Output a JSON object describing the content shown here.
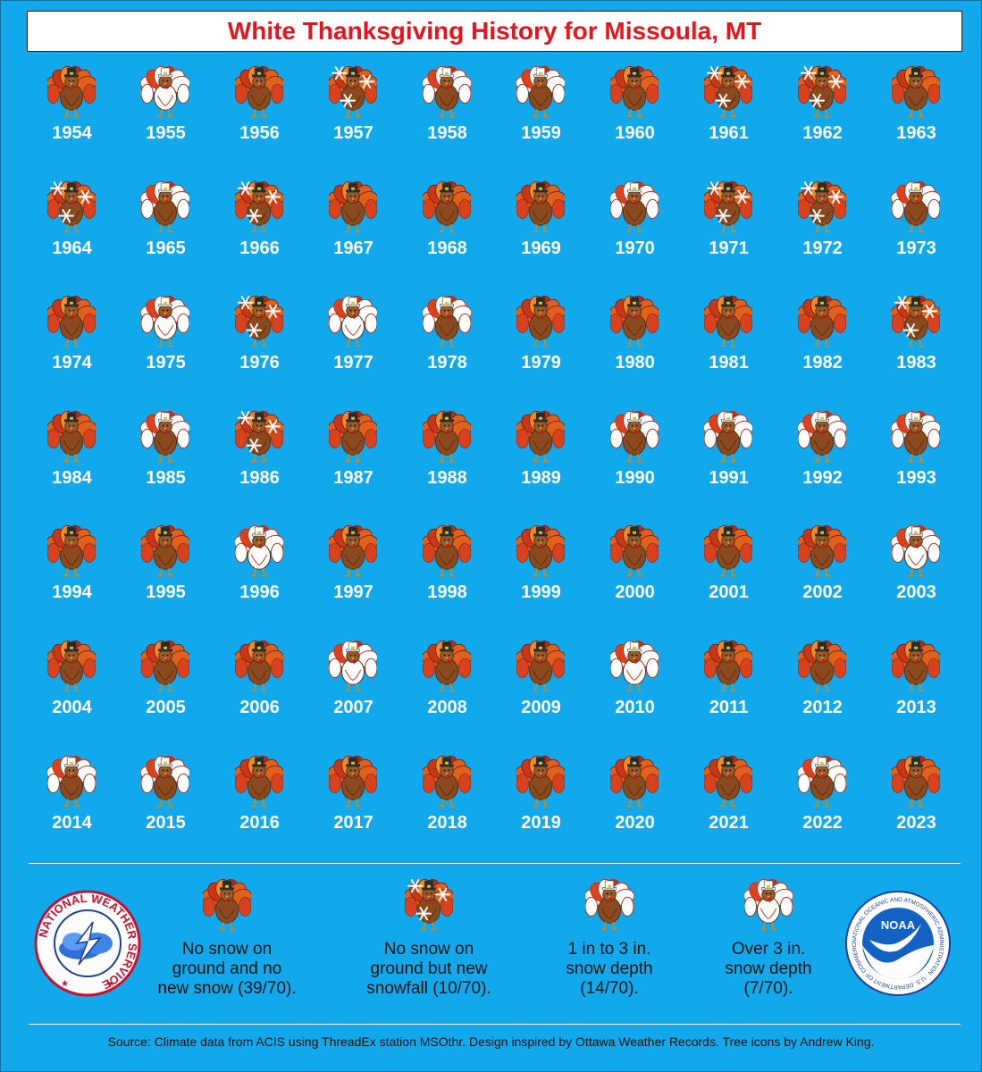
{
  "title": "White Thanksgiving History for Missoula, MT",
  "colors": {
    "background": "#12a9ec",
    "title_text": "#e8141b",
    "none": "#8a4a1e",
    "new_snow": "#8a4a1e",
    "snow_1_3": "#ffffff",
    "snow_over_3": "#ffffff"
  },
  "chart_data": {
    "type": "table",
    "categories": [
      "none",
      "new_snow",
      "snow_1_3",
      "snow_over_3"
    ],
    "years": [
      {
        "year": "1954",
        "category": "none"
      },
      {
        "year": "1955",
        "category": "snow_over_3"
      },
      {
        "year": "1956",
        "category": "none"
      },
      {
        "year": "1957",
        "category": "new_snow"
      },
      {
        "year": "1958",
        "category": "snow_1_3"
      },
      {
        "year": "1959",
        "category": "snow_1_3"
      },
      {
        "year": "1960",
        "category": "none"
      },
      {
        "year": "1961",
        "category": "new_snow"
      },
      {
        "year": "1962",
        "category": "new_snow"
      },
      {
        "year": "1963",
        "category": "none"
      },
      {
        "year": "1964",
        "category": "new_snow"
      },
      {
        "year": "1965",
        "category": "snow_1_3"
      },
      {
        "year": "1966",
        "category": "new_snow"
      },
      {
        "year": "1967",
        "category": "none"
      },
      {
        "year": "1968",
        "category": "none"
      },
      {
        "year": "1969",
        "category": "none"
      },
      {
        "year": "1970",
        "category": "snow_1_3"
      },
      {
        "year": "1971",
        "category": "new_snow"
      },
      {
        "year": "1972",
        "category": "new_snow"
      },
      {
        "year": "1973",
        "category": "snow_1_3"
      },
      {
        "year": "1974",
        "category": "none"
      },
      {
        "year": "1975",
        "category": "snow_over_3"
      },
      {
        "year": "1976",
        "category": "new_snow"
      },
      {
        "year": "1977",
        "category": "snow_over_3"
      },
      {
        "year": "1978",
        "category": "snow_1_3"
      },
      {
        "year": "1979",
        "category": "none"
      },
      {
        "year": "1980",
        "category": "none"
      },
      {
        "year": "1981",
        "category": "none"
      },
      {
        "year": "1982",
        "category": "none"
      },
      {
        "year": "1983",
        "category": "new_snow"
      },
      {
        "year": "1984",
        "category": "none"
      },
      {
        "year": "1985",
        "category": "snow_1_3"
      },
      {
        "year": "1986",
        "category": "new_snow"
      },
      {
        "year": "1987",
        "category": "none"
      },
      {
        "year": "1988",
        "category": "none"
      },
      {
        "year": "1989",
        "category": "none"
      },
      {
        "year": "1990",
        "category": "snow_1_3"
      },
      {
        "year": "1991",
        "category": "snow_1_3"
      },
      {
        "year": "1992",
        "category": "snow_1_3"
      },
      {
        "year": "1993",
        "category": "snow_1_3"
      },
      {
        "year": "1994",
        "category": "none"
      },
      {
        "year": "1995",
        "category": "none"
      },
      {
        "year": "1996",
        "category": "snow_over_3"
      },
      {
        "year": "1997",
        "category": "none"
      },
      {
        "year": "1998",
        "category": "none"
      },
      {
        "year": "1999",
        "category": "none"
      },
      {
        "year": "2000",
        "category": "none"
      },
      {
        "year": "2001",
        "category": "none"
      },
      {
        "year": "2002",
        "category": "none"
      },
      {
        "year": "2003",
        "category": "snow_over_3"
      },
      {
        "year": "2004",
        "category": "none"
      },
      {
        "year": "2005",
        "category": "none"
      },
      {
        "year": "2006",
        "category": "none"
      },
      {
        "year": "2007",
        "category": "snow_over_3"
      },
      {
        "year": "2008",
        "category": "none"
      },
      {
        "year": "2009",
        "category": "none"
      },
      {
        "year": "2010",
        "category": "snow_over_3"
      },
      {
        "year": "2011",
        "category": "none"
      },
      {
        "year": "2012",
        "category": "none"
      },
      {
        "year": "2013",
        "category": "none"
      },
      {
        "year": "2014",
        "category": "snow_1_3"
      },
      {
        "year": "2015",
        "category": "snow_1_3"
      },
      {
        "year": "2016",
        "category": "none"
      },
      {
        "year": "2017",
        "category": "none"
      },
      {
        "year": "2018",
        "category": "none"
      },
      {
        "year": "2019",
        "category": "none"
      },
      {
        "year": "2020",
        "category": "none"
      },
      {
        "year": "2021",
        "category": "none"
      },
      {
        "year": "2022",
        "category": "snow_1_3"
      },
      {
        "year": "2023",
        "category": "none"
      }
    ]
  },
  "legend": {
    "items": [
      {
        "category": "none",
        "label_lines": [
          "No snow on",
          "ground and no",
          "new snow (39/70)."
        ]
      },
      {
        "category": "new_snow",
        "label_lines": [
          "No snow on",
          "ground but new",
          "snowfall (10/70)."
        ]
      },
      {
        "category": "snow_1_3",
        "label_lines": [
          "1 in to 3 in.",
          "snow depth",
          "(14/70)."
        ]
      },
      {
        "category": "snow_over_3",
        "label_lines": [
          "Over 3 in.",
          "snow depth",
          "(7/70)."
        ]
      }
    ]
  },
  "logos": {
    "nws_text": "NATIONAL WEATHER SERVICE",
    "noaa_text": "NOAA",
    "noaa_ring_text": "NATIONAL OCEANIC AND ATMOSPHERIC ADMINISTRATION · U.S. DEPARTMENT OF COMMERCE"
  },
  "source": "Source: Climate data from ACIS using ThreadEx station MSOthr. Design inspired by Ottawa Weather Records. Tree icons by Andrew King."
}
